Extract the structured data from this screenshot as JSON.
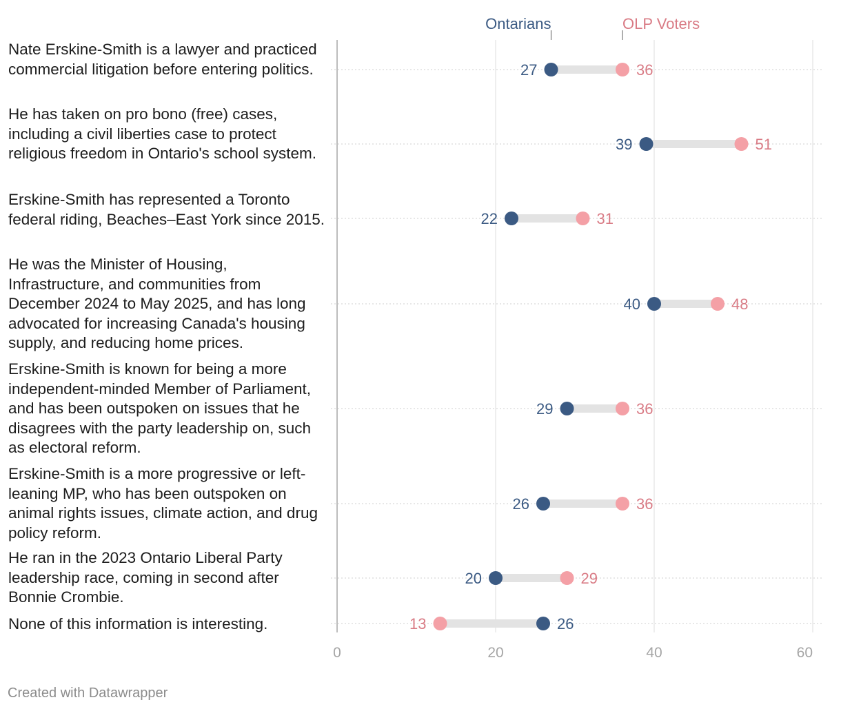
{
  "chart_data": {
    "type": "dot-range",
    "x_range": [
      0,
      60
    ],
    "x_ticks": [
      "0",
      "20",
      "40",
      "60"
    ],
    "grid": true,
    "legend_placement": "top",
    "series": [
      {
        "name": "Ontarians",
        "color": "#3b5a83",
        "values": [
          27,
          39,
          22,
          40,
          29,
          26,
          20,
          26
        ]
      },
      {
        "name": "OLP Voters",
        "color": "#f4a0a6",
        "label_color": "#d97b85",
        "values": [
          36,
          51,
          31,
          48,
          36,
          36,
          29,
          13
        ]
      }
    ],
    "categories": [
      "Nate Erskine-Smith is a lawyer and practiced commercial litigation before entering politics.",
      "He has taken on pro bono (free) cases, including a civil liberties case to protect religious freedom in Ontario's school system.",
      "Erskine-Smith has represented a Toronto federal riding, Beaches–East York since 2015.",
      "He was the Minister of Housing, Infrastructure, and communities from December 2024 to May 2025, and has long advocated for increasing Canada's housing supply, and reducing home prices.",
      "Erskine-Smith is known for being a more independent-minded Member of Parliament, and has been outspoken on issues that he disagrees with the party leadership on, such as electoral reform.",
      "Erskine-Smith is a more progressive or left-leaning MP, who has been outspoken on animal rights issues, climate action, and drug policy reform.",
      "He ran in the 2023 Ontario Liberal Party leadership race, coming in second after Bonnie Crombie.",
      "None of this information is interesting."
    ]
  },
  "footer": "Created with Datawrapper"
}
